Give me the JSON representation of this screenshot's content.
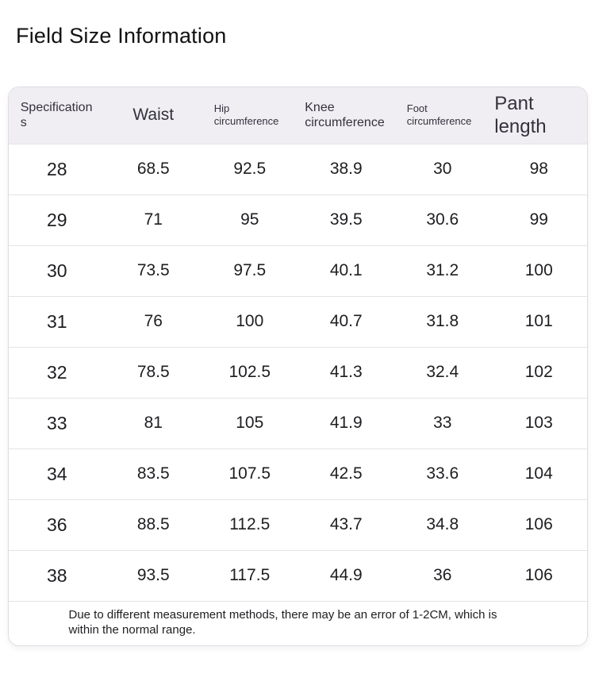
{
  "page": {
    "title": "Field Size Information"
  },
  "table": {
    "columns": [
      {
        "label": "Specifications"
      },
      {
        "label": "Waist"
      },
      {
        "label": "Hip circumference"
      },
      {
        "label": "Knee circumference"
      },
      {
        "label": "Foot circumference"
      },
      {
        "label": "Pant length"
      }
    ],
    "rows": [
      [
        "28",
        "68.5",
        "92.5",
        "38.9",
        "30",
        "98"
      ],
      [
        "29",
        "71",
        "95",
        "39.5",
        "30.6",
        "99"
      ],
      [
        "30",
        "73.5",
        "97.5",
        "40.1",
        "31.2",
        "100"
      ],
      [
        "31",
        "76",
        "100",
        "40.7",
        "31.8",
        "101"
      ],
      [
        "32",
        "78.5",
        "102.5",
        "41.3",
        "32.4",
        "102"
      ],
      [
        "33",
        "81",
        "105",
        "41.9",
        "33",
        "103"
      ],
      [
        "34",
        "83.5",
        "107.5",
        "42.5",
        "33.6",
        "104"
      ],
      [
        "36",
        "88.5",
        "112.5",
        "43.7",
        "34.8",
        "106"
      ],
      [
        "38",
        "93.5",
        "117.5",
        "44.9",
        "36",
        "106"
      ]
    ],
    "note": "Due to different measurement methods, there may be an error of 1-2CM, which is within the normal range."
  },
  "colors": {
    "header_bg": "#f0eef3",
    "border": "#dedde2",
    "row_border": "#e4e3e7",
    "header_text": "#33323c",
    "body_text": "#1e1e22",
    "title_text": "#121212"
  }
}
